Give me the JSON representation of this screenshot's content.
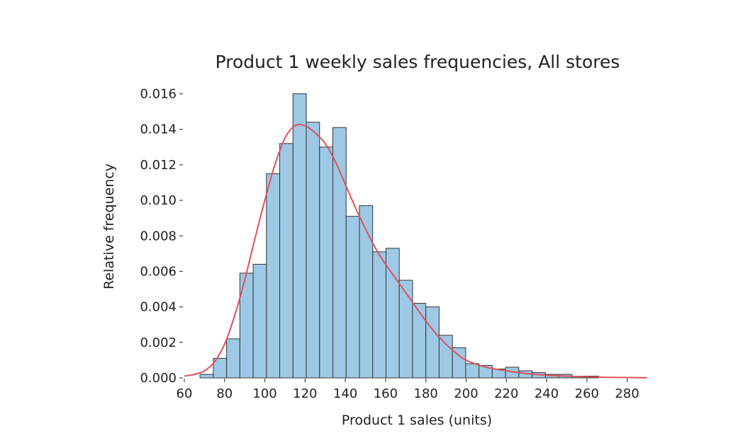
{
  "chart_data": {
    "type": "bar",
    "title": "Product 1 weekly sales frequencies, All stores",
    "xlabel": "Product 1 sales (units)",
    "ylabel": "Relative frequency",
    "xlim": [
      60,
      290
    ],
    "ylim": [
      0,
      0.0165
    ],
    "x_ticks": [
      "60",
      "80",
      "100",
      "120",
      "140",
      "160",
      "180",
      "200",
      "220",
      "240",
      "260",
      "280"
    ],
    "y_ticks": [
      "0.000",
      "0.002",
      "0.004",
      "0.006",
      "0.008",
      "0.010",
      "0.012",
      "0.014",
      "0.016"
    ],
    "bin_width": 6.6,
    "bins": [
      {
        "x0": 67.8,
        "value": 0.0002
      },
      {
        "x0": 74.4,
        "value": 0.0011
      },
      {
        "x0": 81.0,
        "value": 0.0022
      },
      {
        "x0": 87.6,
        "value": 0.0059
      },
      {
        "x0": 94.2,
        "value": 0.0064
      },
      {
        "x0": 100.8,
        "value": 0.0115
      },
      {
        "x0": 107.4,
        "value": 0.0132
      },
      {
        "x0": 114.0,
        "value": 0.016
      },
      {
        "x0": 120.6,
        "value": 0.0144
      },
      {
        "x0": 127.2,
        "value": 0.013
      },
      {
        "x0": 133.8,
        "value": 0.0141
      },
      {
        "x0": 140.4,
        "value": 0.0091
      },
      {
        "x0": 147.0,
        "value": 0.0097
      },
      {
        "x0": 153.6,
        "value": 0.0071
      },
      {
        "x0": 160.2,
        "value": 0.0073
      },
      {
        "x0": 166.8,
        "value": 0.0055
      },
      {
        "x0": 173.4,
        "value": 0.0042
      },
      {
        "x0": 180.0,
        "value": 0.004
      },
      {
        "x0": 186.6,
        "value": 0.0024
      },
      {
        "x0": 193.2,
        "value": 0.0017
      },
      {
        "x0": 199.8,
        "value": 0.0008
      },
      {
        "x0": 206.4,
        "value": 0.0007
      },
      {
        "x0": 213.0,
        "value": 0.0005
      },
      {
        "x0": 219.6,
        "value": 0.0006
      },
      {
        "x0": 226.2,
        "value": 0.0004
      },
      {
        "x0": 232.8,
        "value": 0.0003
      },
      {
        "x0": 239.4,
        "value": 0.0002
      },
      {
        "x0": 246.0,
        "value": 0.0002
      },
      {
        "x0": 252.6,
        "value": 0.0001
      },
      {
        "x0": 259.2,
        "value": 0.0001
      }
    ],
    "density_curve": {
      "color": "#e0505a",
      "x": [
        60,
        65,
        70,
        75,
        80,
        85,
        90,
        95,
        100,
        105,
        110,
        115,
        120,
        125,
        130,
        135,
        140,
        145,
        150,
        155,
        160,
        165,
        170,
        175,
        180,
        185,
        190,
        195,
        200,
        210,
        220,
        230,
        240,
        250,
        260,
        270,
        280,
        290
      ],
      "y": [
        0.0001,
        0.0002,
        0.0004,
        0.0009,
        0.0019,
        0.0035,
        0.0055,
        0.0078,
        0.01,
        0.012,
        0.0135,
        0.0142,
        0.0142,
        0.0138,
        0.0132,
        0.0122,
        0.0109,
        0.0096,
        0.0084,
        0.0073,
        0.0064,
        0.0056,
        0.0048,
        0.004,
        0.0032,
        0.0025,
        0.0019,
        0.0014,
        0.001,
        0.0006,
        0.0004,
        0.00025,
        0.00015,
        0.0001,
        6e-05,
        3e-05,
        2e-05,
        1e-05
      ]
    },
    "bar_color": "#9ec9e6",
    "grid": false,
    "legend": "none"
  }
}
